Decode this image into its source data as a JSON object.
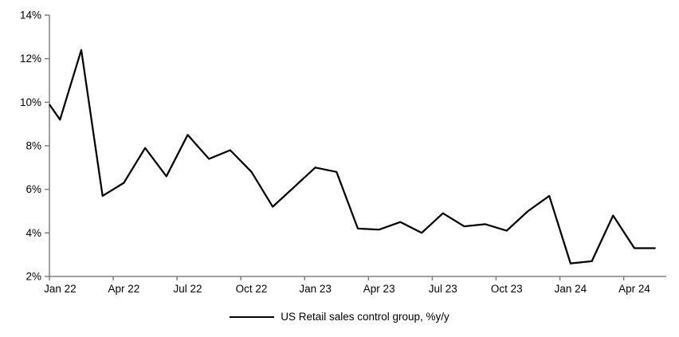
{
  "chart_data": {
    "type": "line",
    "title": "",
    "legend_label": "US Retail sales control group, %y/y",
    "legend_position": "bottom",
    "grid": false,
    "x_axis": {
      "categories": [
        "Jan 22",
        "Feb 22",
        "Mar 22",
        "Apr 22",
        "May 22",
        "Jun 22",
        "Jul 22",
        "Aug 22",
        "Sep 22",
        "Oct 22",
        "Nov 22",
        "Dec 22",
        "Jan 23",
        "Feb 23",
        "Mar 23",
        "Apr 23",
        "May 23",
        "Jun 23",
        "Jul 23",
        "Aug 23",
        "Sep 23",
        "Oct 23",
        "Nov 23",
        "Dec 23",
        "Jan 24",
        "Feb 24",
        "Mar 24",
        "Apr 24",
        "May 24"
      ],
      "tick_labels": [
        "Jan 22",
        "Apr 22",
        "Jul 22",
        "Oct 22",
        "Jan 23",
        "Apr 23",
        "Jul 23",
        "Oct 23",
        "Jan 24",
        "Apr 24"
      ],
      "tick_interval_months": 3
    },
    "y_axis": {
      "min": 2,
      "max": 14,
      "step": 2,
      "suffix": "%",
      "tick_labels": [
        "2%",
        "4%",
        "6%",
        "8%",
        "10%",
        "12%",
        "14%"
      ]
    },
    "series": [
      {
        "name": "US Retail sales control group, %y/y",
        "color": "#000000",
        "edge_start_value": 9.9,
        "values": [
          9.2,
          12.4,
          5.7,
          6.3,
          7.9,
          6.6,
          8.5,
          7.4,
          7.8,
          6.8,
          5.2,
          6.1,
          7.0,
          6.8,
          4.2,
          4.15,
          4.5,
          4.0,
          4.9,
          4.3,
          4.4,
          4.1,
          5.0,
          5.7,
          2.6,
          2.7,
          4.8,
          3.3,
          3.3
        ]
      }
    ]
  },
  "colors": {
    "axis": "#808080",
    "text": "#000000",
    "background": "#ffffff",
    "series": "#000000"
  }
}
